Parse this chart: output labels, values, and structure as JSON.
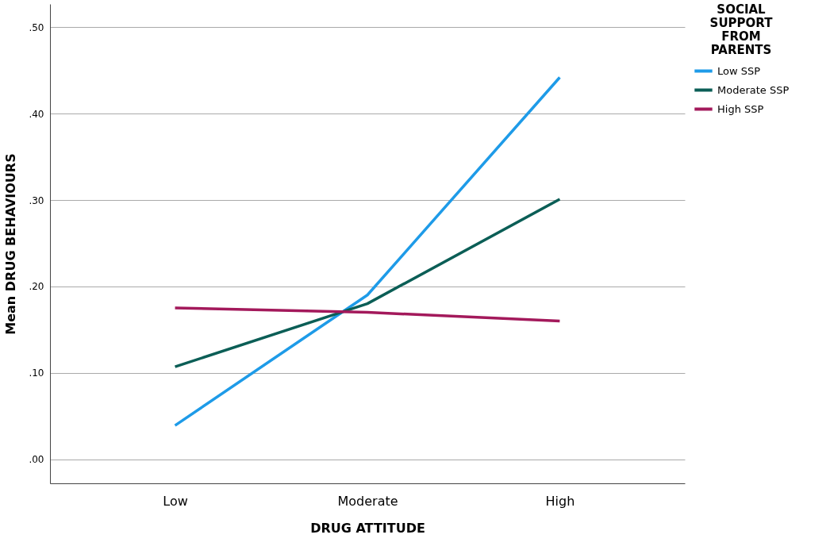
{
  "chart_data": {
    "type": "line",
    "xlabel": "DRUG ATTITUDE",
    "ylabel": "Mean DRUG BEHAVIOURS",
    "legend_title": "SOCIAL SUPPORT FROM PARENTS",
    "categories": [
      "Low",
      "Moderate",
      "High"
    ],
    "series": [
      {
        "name": "Low SSP",
        "color": "#1e9be8",
        "values": [
          0.039,
          0.19,
          0.442
        ]
      },
      {
        "name": "Moderate SSP",
        "color": "#0b5e56",
        "values": [
          0.107,
          0.18,
          0.301
        ]
      },
      {
        "name": "High SSP",
        "color": "#a3195b",
        "values": [
          0.175,
          0.17,
          0.16
        ]
      }
    ],
    "ylim": [
      -0.028,
      0.527
    ],
    "yticks": [
      {
        "value": 0,
        "label": ".00"
      },
      {
        "value": 0.1,
        "label": ".10"
      },
      {
        "value": 0.2,
        "label": ".20"
      },
      {
        "value": 0.3,
        "label": ".30"
      },
      {
        "value": 0.4,
        "label": ".40"
      },
      {
        "value": 0.5,
        "label": ".50"
      }
    ],
    "grid": "y",
    "legend": "top right",
    "marker": "none",
    "line_style": "solid"
  }
}
